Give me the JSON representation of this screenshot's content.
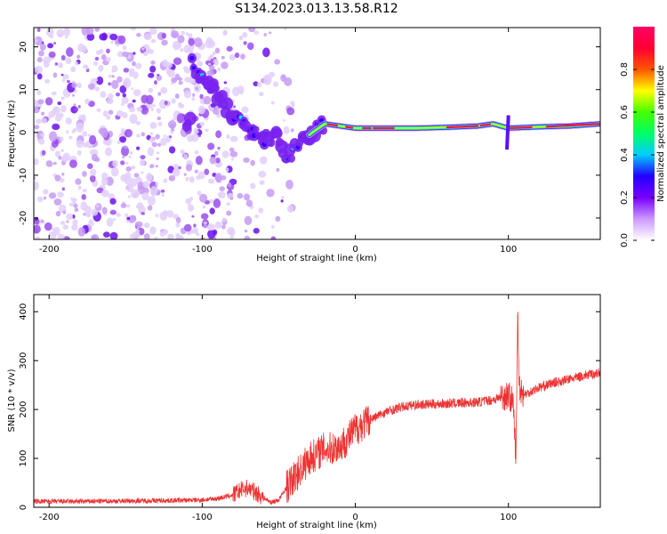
{
  "title": "S134.2023.013.13.58.R12",
  "chart_data": [
    {
      "type": "heatmap",
      "xlabel": "Height of straight line (km)",
      "ylabel": "Frequency (Hz)",
      "xlim": [
        -210,
        160
      ],
      "ylim": [
        -25,
        24.5
      ],
      "x_ticks": [
        -200,
        -100,
        0,
        100
      ],
      "y_ticks": [
        -20,
        -10,
        0,
        10,
        20
      ],
      "colorbar": {
        "label": "Normalized spectral amplitude",
        "range": [
          0,
          1
        ],
        "ticks": [
          0.0,
          0.2,
          0.4,
          0.6,
          0.8
        ],
        "colors": [
          "#ffffff",
          "#cc99ff",
          "#7700ff",
          "#2200ff",
          "#00ccff",
          "#00ff66",
          "#44ff00",
          "#ffff00",
          "#ff5500",
          "#ff0033",
          "#ff0066"
        ]
      },
      "ridge_track": [
        {
          "x": -107,
          "y": 16
        },
        {
          "x": -100,
          "y": 13
        },
        {
          "x": -92,
          "y": 10
        },
        {
          "x": -85,
          "y": 6
        },
        {
          "x": -78,
          "y": 3
        },
        {
          "x": -70,
          "y": 1
        },
        {
          "x": -62,
          "y": -1
        },
        {
          "x": -55,
          "y": -2
        },
        {
          "x": -50,
          "y": -1
        },
        {
          "x": -45,
          "y": -6
        },
        {
          "x": -40,
          "y": -4
        },
        {
          "x": -35,
          "y": -2
        },
        {
          "x": -28,
          "y": 0
        },
        {
          "x": -20,
          "y": 2
        },
        {
          "x": -10,
          "y": 1.5
        },
        {
          "x": 0,
          "y": 1
        },
        {
          "x": 20,
          "y": 1
        },
        {
          "x": 40,
          "y": 1
        },
        {
          "x": 60,
          "y": 1.2
        },
        {
          "x": 80,
          "y": 1.5
        },
        {
          "x": 90,
          "y": 2
        },
        {
          "x": 100,
          "y": 1
        },
        {
          "x": 120,
          "y": 1.3
        },
        {
          "x": 140,
          "y": 1.5
        },
        {
          "x": 160,
          "y": 2
        }
      ],
      "noise_region_x": [
        -210,
        -60
      ],
      "series_color": "#ee3333"
    },
    {
      "type": "line",
      "xlabel": "Height of straight line (km)",
      "ylabel": "SNR (10 * v/v)",
      "xlim": [
        -210,
        160
      ],
      "ylim": [
        0,
        435
      ],
      "x_ticks": [
        -200,
        -100,
        0,
        100
      ],
      "y_ticks": [
        0,
        100,
        200,
        300,
        400
      ],
      "color": "#ee3333",
      "series": [
        {
          "x": [
            -210,
            -180,
            -150,
            -120,
            -100,
            -90,
            -80,
            -75,
            -70,
            -65,
            -60,
            -55,
            -50,
            -45,
            -40,
            -35,
            -30,
            -25,
            -20,
            -15,
            -10,
            -5,
            0,
            10,
            20,
            30,
            40,
            60,
            80,
            90,
            100,
            103,
            105,
            106,
            107,
            110,
            120,
            130,
            140,
            150,
            160
          ],
          "y": [
            12,
            12,
            13,
            14,
            15,
            18,
            25,
            35,
            40,
            30,
            20,
            10,
            15,
            40,
            60,
            80,
            100,
            110,
            120,
            120,
            125,
            140,
            160,
            180,
            195,
            205,
            210,
            212,
            215,
            220,
            230,
            215,
            100,
            400,
            250,
            230,
            245,
            255,
            262,
            270,
            275
          ]
        }
      ]
    }
  ]
}
